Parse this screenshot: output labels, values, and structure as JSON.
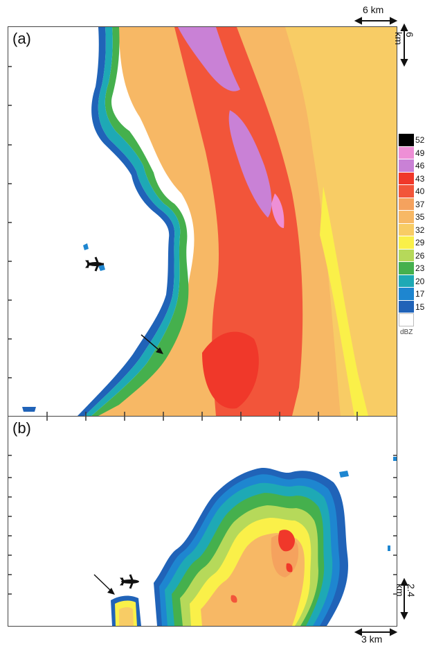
{
  "panels": {
    "a": {
      "label": "(a)"
    },
    "b": {
      "label": "(b)"
    }
  },
  "scales": {
    "top_horizontal": "6 km",
    "top_vertical": "6 km",
    "bottom_vertical": "2.4 km",
    "bottom_horizontal": "3 km"
  },
  "legend": {
    "unit": "dBZ",
    "entries": [
      {
        "value": "52",
        "color": "#000000"
      },
      {
        "value": "49",
        "color": "#ee8fd6"
      },
      {
        "value": "46",
        "color": "#c981d6"
      },
      {
        "value": "43",
        "color": "#f0382a"
      },
      {
        "value": "40",
        "color": "#f2553a"
      },
      {
        "value": "37",
        "color": "#f5a25e"
      },
      {
        "value": "35",
        "color": "#f7b865"
      },
      {
        "value": "32",
        "color": "#f8cc65"
      },
      {
        "value": "29",
        "color": "#faf049"
      },
      {
        "value": "26",
        "color": "#b6d95a"
      },
      {
        "value": "23",
        "color": "#45b04d"
      },
      {
        "value": "20",
        "color": "#1ea9b5"
      },
      {
        "value": "17",
        "color": "#1e86d0"
      },
      {
        "value": "15",
        "color": "#2063b8"
      },
      {
        "value": "",
        "color": "#ffffff"
      }
    ]
  },
  "icons": {
    "aircraft": "airplane-icon",
    "arrow": "pointer-arrow-icon"
  }
}
